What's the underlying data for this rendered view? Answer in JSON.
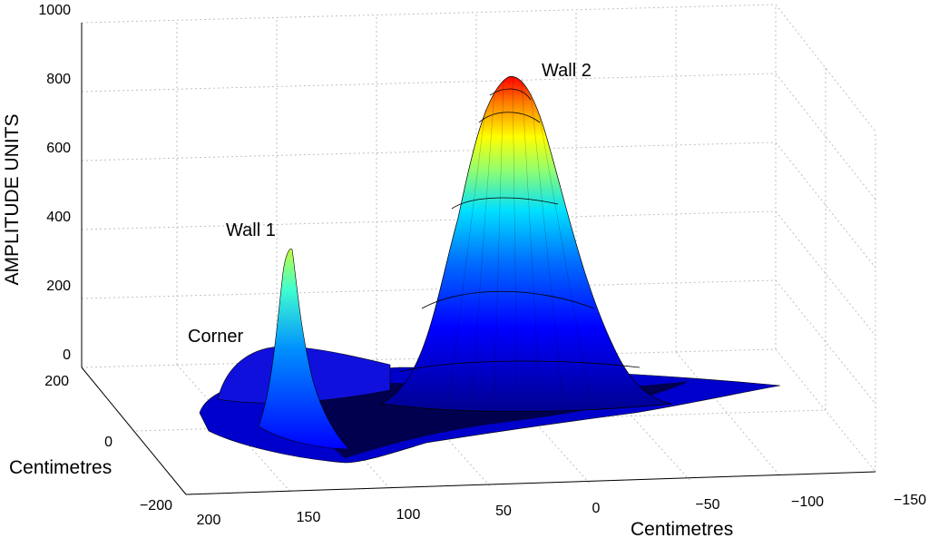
{
  "chart_data": {
    "type": "surface",
    "zlabel": "AMPLITUDE UNITS",
    "ylabel": "Centimetres",
    "xlabel": "Centimetres",
    "zlim": [
      0,
      1000
    ],
    "z_ticks": [
      "0",
      "200",
      "400",
      "600",
      "800",
      "1000"
    ],
    "y_ticks": [
      "200",
      "0",
      "−200"
    ],
    "x_ticks": [
      "200",
      "150",
      "100",
      "50",
      "0",
      "−50",
      "−100",
      "−150"
    ],
    "grid": true,
    "colormap": [
      "#00008f",
      "#0000ff",
      "#0080ff",
      "#00ffff",
      "#80ff80",
      "#ffff00",
      "#ff8000",
      "#ff0000",
      "#800000"
    ],
    "annotations": [
      {
        "text": "Wall 2",
        "x": 30,
        "y": 0,
        "z": 840
      },
      {
        "text": "Wall 1",
        "x": 140,
        "y": 0,
        "z": 340
      },
      {
        "text": "Corner",
        "x": 175,
        "y": 20,
        "z": 60
      }
    ],
    "peaks": [
      {
        "name": "Wall 2",
        "x": 45,
        "amplitude": 840
      },
      {
        "name": "Wall 1",
        "x": 145,
        "amplitude": 340
      },
      {
        "name": "Corner",
        "x": 180,
        "amplitude": 90
      }
    ]
  }
}
